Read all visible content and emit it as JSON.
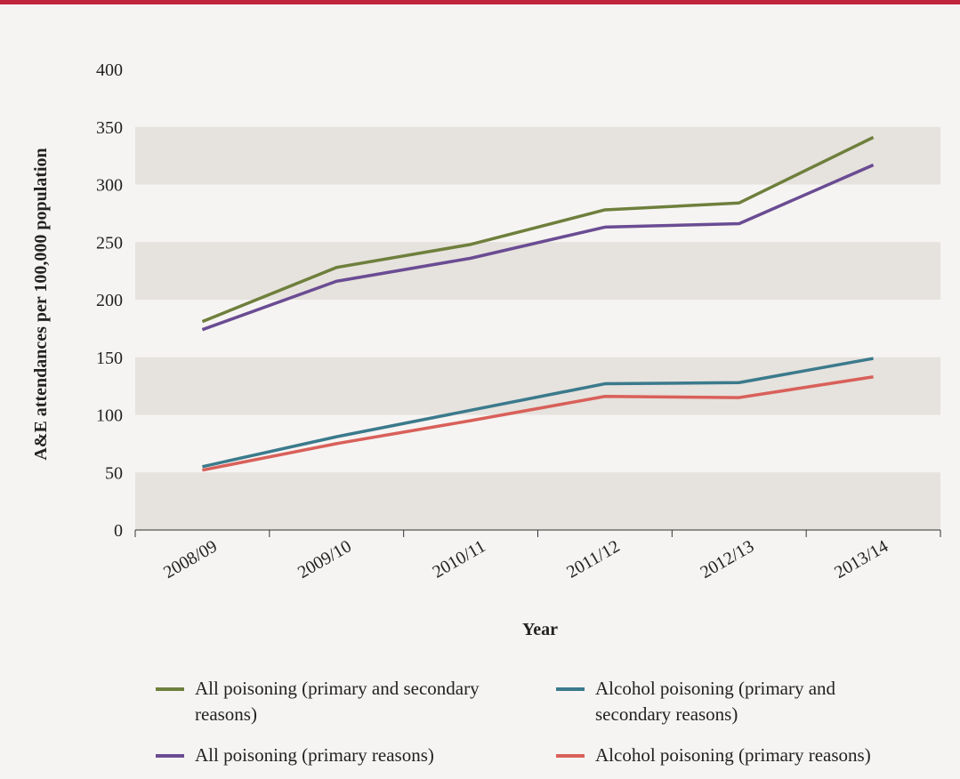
{
  "chart_data": {
    "type": "line",
    "x_label": "Year",
    "y_label": "A&E attendances per 100,000 population",
    "categories": [
      "2008/09",
      "2009/10",
      "2010/11",
      "2011/12",
      "2012/13",
      "2013/14"
    ],
    "series": [
      {
        "name": "All poisoning (primary and secondary reasons)",
        "color": "#6e7f3c",
        "values": [
          181,
          228,
          248,
          278,
          284,
          341
        ]
      },
      {
        "name": "All poisoning (primary reasons)",
        "color": "#6a4c93",
        "values": [
          174,
          216,
          236,
          263,
          266,
          317
        ]
      },
      {
        "name": "Alcohol poisoning (primary and secondary reasons)",
        "color": "#3b7a8c",
        "values": [
          55,
          81,
          104,
          127,
          128,
          149
        ]
      },
      {
        "name": "Alcohol poisoning (primary reasons)",
        "color": "#d9605a",
        "values": [
          52,
          75,
          95,
          116,
          115,
          133
        ]
      }
    ],
    "ylim": [
      0,
      400
    ],
    "yticks": [
      0,
      50,
      100,
      150,
      200,
      250,
      300,
      350,
      400
    ],
    "grid": "bands"
  }
}
